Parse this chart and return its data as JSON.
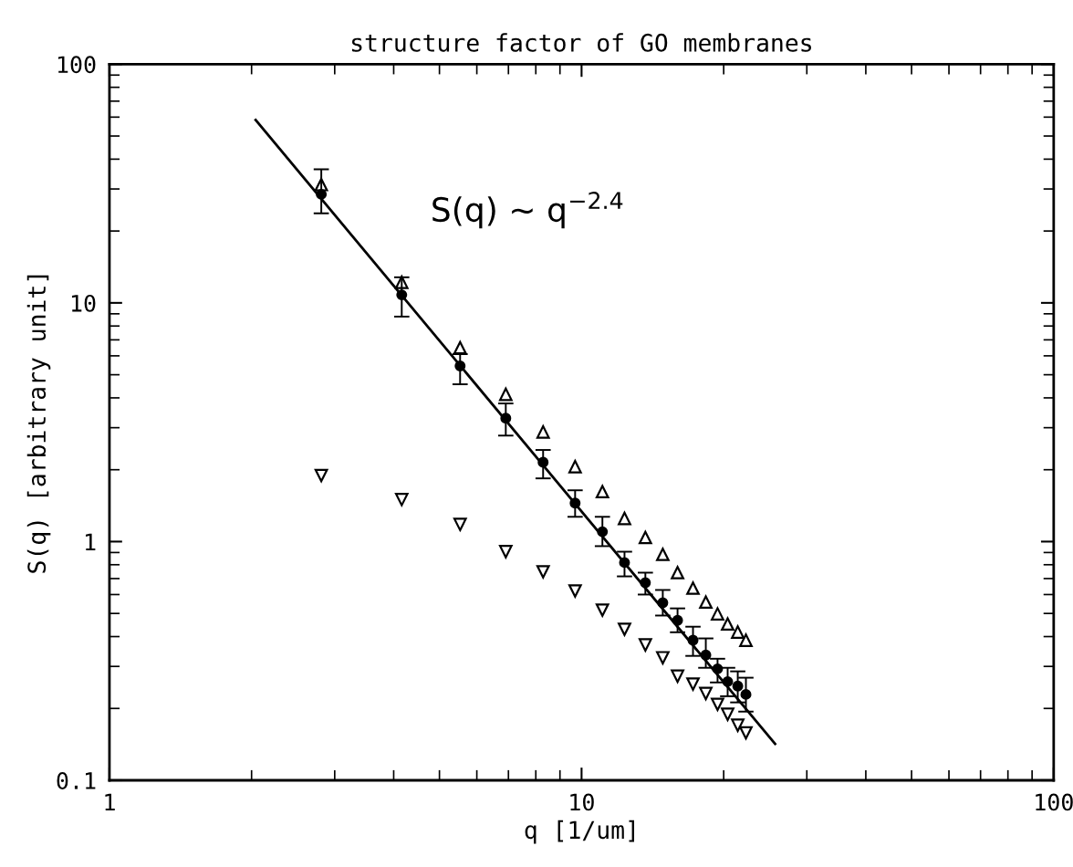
{
  "chart_data": {
    "type": "scatter",
    "title": "structure factor of GO membranes",
    "xlabel": "q [1/um]",
    "ylabel": "S(q) [arbitrary unit]",
    "log": "xy",
    "xlim": [
      1,
      100
    ],
    "ylim": [
      0.1,
      100
    ],
    "xticks": [
      1,
      10,
      100
    ],
    "yticks": [
      0.1,
      1,
      10,
      100
    ],
    "grid": false,
    "legend": false,
    "annotations": [
      "S(q) ~ q$^{−2.4}$"
    ],
    "x": [
      2.81,
      4.16,
      5.53,
      6.91,
      8.29,
      9.69,
      11.07,
      12.33,
      13.65,
      14.86,
      15.97,
      17.22,
      18.33,
      19.41,
      20.39,
      21.42,
      22.29
    ],
    "series": [
      {
        "marker": "circle",
        "color": "#000000",
        "values": [
          28.5,
          10.8,
          5.44,
          3.29,
          2.15,
          1.45,
          1.1,
          0.817,
          0.672,
          0.554,
          0.468,
          0.386,
          0.335,
          0.293,
          0.259,
          0.248,
          0.229
        ],
        "errors": [
          [
            23.7,
            36.3
          ],
          [
            8.76,
            12.8
          ],
          [
            4.56,
            6.1
          ],
          [
            2.78,
            3.79
          ],
          [
            1.84,
            2.42
          ],
          [
            1.27,
            1.64
          ],
          [
            0.957,
            1.27
          ],
          [
            0.715,
            0.907
          ],
          [
            0.6,
            0.741
          ],
          [
            0.49,
            0.627
          ],
          [
            0.417,
            0.525
          ],
          [
            0.332,
            0.44
          ],
          [
            0.296,
            0.393
          ],
          [
            0.257,
            0.323
          ],
          [
            0.225,
            0.296
          ],
          [
            0.212,
            0.286
          ],
          [
            0.194,
            0.269
          ]
        ]
      },
      {
        "marker": "triangle",
        "color": "#000000",
        "values": [
          31.3,
          12.2,
          6.49,
          4.14,
          2.88,
          2.06,
          1.62,
          1.25,
          1.04,
          0.884,
          0.741,
          0.638,
          0.558,
          0.498,
          0.452,
          0.418,
          0.386
        ]
      },
      {
        "marker": "triangle",
        "color": "#000000",
        "values": [
          1.89,
          1.5,
          1.18,
          0.908,
          0.747,
          0.621,
          0.516,
          0.429,
          0.369,
          0.326,
          0.273,
          0.253,
          0.231,
          0.208,
          0.189,
          0.17,
          0.158
        ]
      },
      {
        "type": "line",
        "line_style": "solid",
        "color": "#000000",
        "x": [
          2.04,
          25.7
        ],
        "values": [
          58.4,
          0.142
        ]
      }
    ]
  }
}
